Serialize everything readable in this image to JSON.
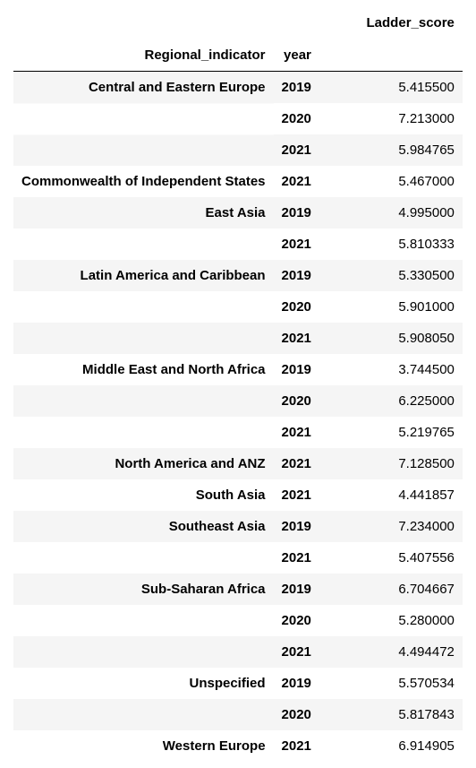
{
  "table": {
    "index_names": [
      "Regional_indicator",
      "year"
    ],
    "value_columns": [
      "Ladder_score"
    ],
    "groups": [
      {
        "region": "Central and Eastern Europe",
        "rows": [
          {
            "year": "2019",
            "score": "5.415500"
          },
          {
            "year": "2020",
            "score": "7.213000"
          },
          {
            "year": "2021",
            "score": "5.984765"
          }
        ]
      },
      {
        "region": "Commonwealth of Independent States",
        "rows": [
          {
            "year": "2021",
            "score": "5.467000"
          }
        ]
      },
      {
        "region": "East Asia",
        "rows": [
          {
            "year": "2019",
            "score": "4.995000"
          },
          {
            "year": "2021",
            "score": "5.810333"
          }
        ]
      },
      {
        "region": "Latin America and Caribbean",
        "rows": [
          {
            "year": "2019",
            "score": "5.330500"
          },
          {
            "year": "2020",
            "score": "5.901000"
          },
          {
            "year": "2021",
            "score": "5.908050"
          }
        ]
      },
      {
        "region": "Middle East and North Africa",
        "rows": [
          {
            "year": "2019",
            "score": "3.744500"
          },
          {
            "year": "2020",
            "score": "6.225000"
          },
          {
            "year": "2021",
            "score": "5.219765"
          }
        ]
      },
      {
        "region": "North America and ANZ",
        "rows": [
          {
            "year": "2021",
            "score": "7.128500"
          }
        ]
      },
      {
        "region": "South Asia",
        "rows": [
          {
            "year": "2021",
            "score": "4.441857"
          }
        ]
      },
      {
        "region": "Southeast Asia",
        "rows": [
          {
            "year": "2019",
            "score": "7.234000"
          },
          {
            "year": "2021",
            "score": "5.407556"
          }
        ]
      },
      {
        "region": "Sub-Saharan Africa",
        "rows": [
          {
            "year": "2019",
            "score": "6.704667"
          },
          {
            "year": "2020",
            "score": "5.280000"
          },
          {
            "year": "2021",
            "score": "4.494472"
          }
        ]
      },
      {
        "region": "Unspecified",
        "rows": [
          {
            "year": "2019",
            "score": "5.570534"
          },
          {
            "year": "2020",
            "score": "5.817843"
          }
        ]
      },
      {
        "region": "Western Europe",
        "rows": [
          {
            "year": "2021",
            "score": "6.914905"
          }
        ]
      }
    ]
  },
  "colors": {
    "stripe": "#f5f5f5",
    "background": "#ffffff",
    "header_rule": "#000000"
  }
}
